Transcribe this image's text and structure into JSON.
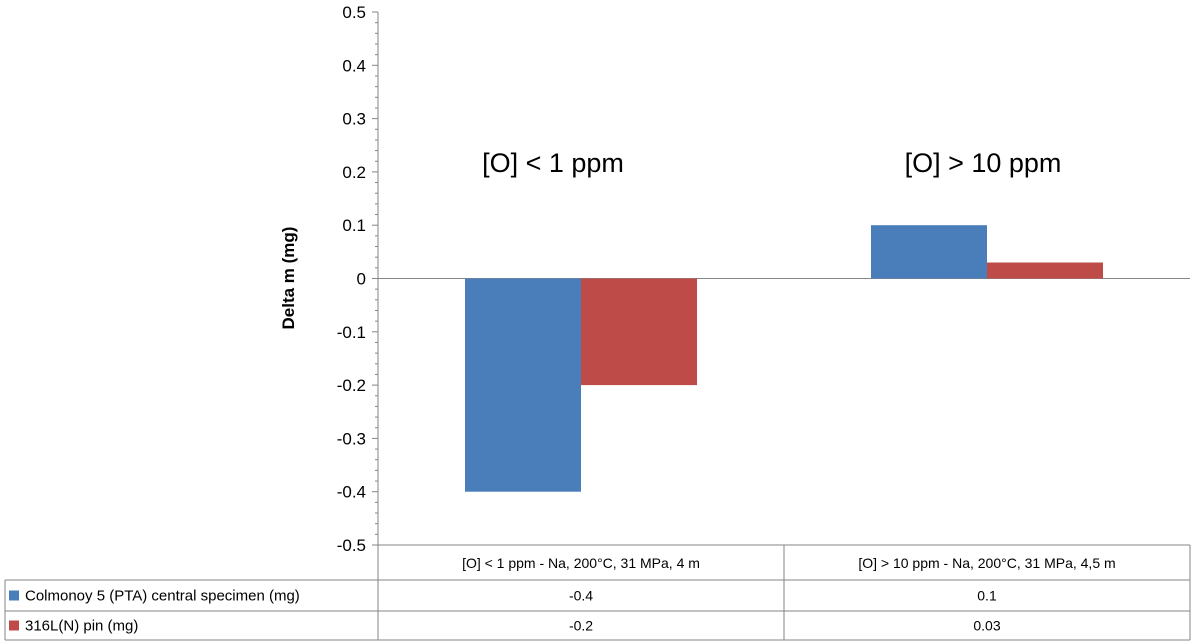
{
  "chart_data": {
    "type": "bar",
    "categories": [
      "[O] < 1 ppm - Na, 200°C, 31 MPa, 4 m",
      "[O] > 10 ppm - Na, 200°C, 31 MPa, 4,5 m"
    ],
    "series": [
      {
        "name": "Colmonoy 5 (PTA) central specimen (mg)",
        "values": [
          -0.4,
          0.1
        ],
        "labels": [
          "-0.4",
          "0.1"
        ],
        "color": "#4a7ebb"
      },
      {
        "name": "316L(N) pin (mg)",
        "values": [
          -0.2,
          0.03
        ],
        "labels": [
          "-0.2",
          "0.03"
        ],
        "color": "#be4b48"
      }
    ],
    "annotations": [
      "[O] < 1 ppm",
      "[O] > 10 ppm"
    ],
    "ylabel": "Delta m (mg)",
    "xlabel": "",
    "ylim": [
      -0.5,
      0.5
    ],
    "yticks": [
      "0.5",
      "0.4",
      "0.3",
      "0.2",
      "0.1",
      "0",
      "-0.1",
      "-0.2",
      "-0.3",
      "-0.4",
      "-0.5"
    ],
    "grid": false,
    "legend": "data-table"
  }
}
